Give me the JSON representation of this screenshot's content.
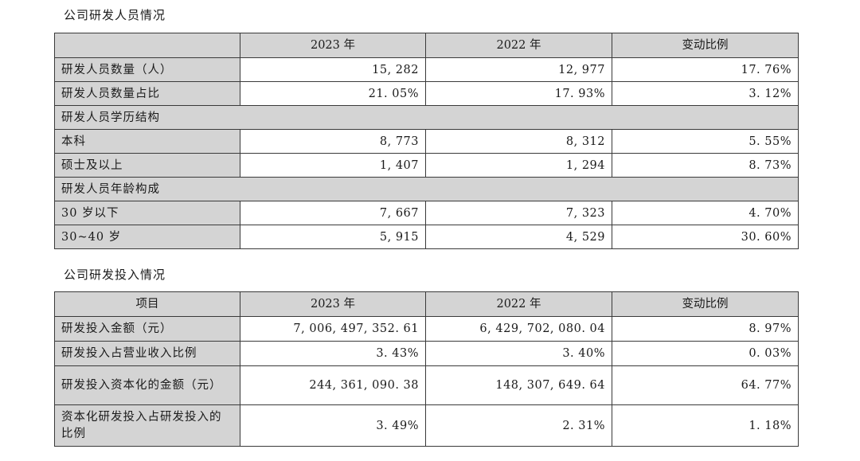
{
  "section1": {
    "title": "公司研发人员情况",
    "headers": [
      "",
      "2023 年",
      "2022 年",
      "变动比例"
    ],
    "rows": [
      {
        "label": "研发人员数量（人）",
        "y2023": "15, 282",
        "y2022": "12, 977",
        "change": "17. 76%"
      },
      {
        "label": "研发人员数量占比",
        "y2023": "21. 05%",
        "y2022": "17. 93%",
        "change": "3. 12%"
      },
      {
        "group": "研发人员学历结构"
      },
      {
        "label": "本科",
        "y2023": "8, 773",
        "y2022": "8, 312",
        "change": "5. 55%"
      },
      {
        "label": "硕士及以上",
        "y2023": "1, 407",
        "y2022": "1, 294",
        "change": "8. 73%"
      },
      {
        "group": "研发人员年龄构成"
      },
      {
        "label": "30 岁以下",
        "y2023": "7, 667",
        "y2022": "7, 323",
        "change": "4. 70%"
      },
      {
        "label": "30~40 岁",
        "y2023": "5, 915",
        "y2022": "4, 529",
        "change": "30. 60%"
      }
    ]
  },
  "section2": {
    "title": "公司研发投入情况",
    "headers": [
      "项目",
      "2023 年",
      "2022 年",
      "变动比例"
    ],
    "rows": [
      {
        "label": "研发投入金额（元）",
        "y2023": "7, 006, 497, 352. 61",
        "y2022": "6, 429, 702, 080. 04",
        "change": "8. 97%"
      },
      {
        "label": "研发投入占营业收入比例",
        "y2023": "3. 43%",
        "y2022": "3. 40%",
        "change": "0. 03%"
      },
      {
        "label": "研发投入资本化的金额（元）",
        "y2023": "244, 361, 090. 38",
        "y2022": "148, 307, 649. 64",
        "change": "64. 77%"
      },
      {
        "label": "资本化研发投入占研发投入的比例",
        "y2023": "3. 49%",
        "y2022": "2. 31%",
        "change": "1. 18%"
      }
    ]
  }
}
